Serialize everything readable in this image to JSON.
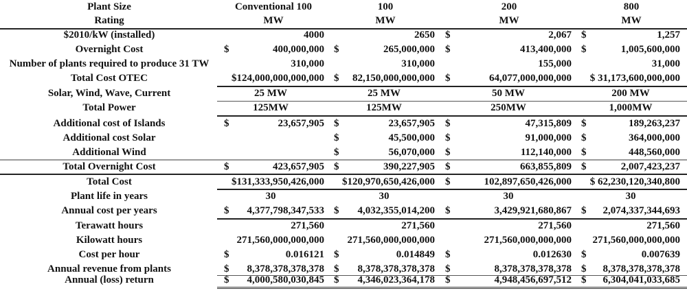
{
  "header": {
    "label_line1": "Plant Size",
    "label_line2": "Rating",
    "columns": [
      {
        "line1": "Conventional 100",
        "line2": "MW"
      },
      {
        "line1": "100",
        "line2": "MW"
      },
      {
        "line1": "200",
        "line2": "MW"
      },
      {
        "line1": "800",
        "line2": "MW"
      }
    ]
  },
  "rows": [
    {
      "label": "$2010/kW (installed)",
      "mode": "right",
      "cells": [
        {
          "cur": "",
          "val": "4000"
        },
        {
          "cur": "",
          "val": "2650"
        },
        {
          "cur": "$",
          "val": "2,067"
        },
        {
          "cur": "$",
          "val": "1,257"
        }
      ]
    },
    {
      "label": "Overnight Cost",
      "mode": "right",
      "cells": [
        {
          "cur": "$",
          "val": "400,000,000"
        },
        {
          "cur": "$",
          "val": "265,000,000"
        },
        {
          "cur": "$",
          "val": "413,400,000"
        },
        {
          "cur": "$",
          "val": "1,005,600,000"
        }
      ]
    },
    {
      "label": "Number of plants required to produce 31 TW",
      "mode": "right",
      "cells": [
        {
          "cur": "",
          "val": "310,000"
        },
        {
          "cur": "",
          "val": "310,000"
        },
        {
          "cur": "",
          "val": "155,000"
        },
        {
          "cur": "",
          "val": "31,000"
        }
      ]
    },
    {
      "label": "Total Cost OTEC",
      "mode": "right",
      "cells": [
        {
          "cur": "",
          "val": "$124,000,000,000,000"
        },
        {
          "cur": "$",
          "val": "82,150,000,000,000"
        },
        {
          "cur": "$",
          "val": "64,077,000,000,000"
        },
        {
          "cur": "",
          "val": "$ 31,173,600,000,000"
        }
      ]
    },
    {
      "label": "Solar, Wind, Wave, Current",
      "mode": "center",
      "cells": [
        {
          "cur": "",
          "val": "25 MW"
        },
        {
          "cur": "",
          "val": "25 MW"
        },
        {
          "cur": "",
          "val": "50 MW"
        },
        {
          "cur": "",
          "val": "200 MW"
        }
      ]
    },
    {
      "label": "Total Power",
      "mode": "center",
      "cells": [
        {
          "cur": "",
          "val": "125MW"
        },
        {
          "cur": "",
          "val": "125MW"
        },
        {
          "cur": "",
          "val": "250MW"
        },
        {
          "cur": "",
          "val": "1,000MW"
        }
      ]
    },
    {
      "label": "Additional cost of Islands",
      "mode": "right",
      "cells": [
        {
          "cur": "$",
          "val": "23,657,905"
        },
        {
          "cur": "$",
          "val": "23,657,905"
        },
        {
          "cur": "$",
          "val": "47,315,809"
        },
        {
          "cur": "$",
          "val": "189,263,237"
        }
      ]
    },
    {
      "label": "Additional cost Solar",
      "mode": "right",
      "cells": [
        {
          "cur": "",
          "val": ""
        },
        {
          "cur": "$",
          "val": "45,500,000"
        },
        {
          "cur": "$",
          "val": "91,000,000"
        },
        {
          "cur": "$",
          "val": "364,000,000"
        }
      ]
    },
    {
      "label": "Additional Wind",
      "mode": "right",
      "cells": [
        {
          "cur": "",
          "val": ""
        },
        {
          "cur": "$",
          "val": "56,070,000"
        },
        {
          "cur": "$",
          "val": "112,140,000"
        },
        {
          "cur": "$",
          "val": "448,560,000"
        }
      ]
    },
    {
      "label": "Total Overnight Cost",
      "mode": "right",
      "cells": [
        {
          "cur": "$",
          "val": "423,657,905"
        },
        {
          "cur": "$",
          "val": "390,227,905"
        },
        {
          "cur": "$",
          "val": "663,855,809"
        },
        {
          "cur": "$",
          "val": "2,007,423,237"
        }
      ]
    },
    {
      "label": "Total Cost",
      "mode": "right",
      "cells": [
        {
          "cur": "",
          "val": "$131,333,950,426,000"
        },
        {
          "cur": "",
          "val": "$120,970,650,426,000"
        },
        {
          "cur": "$",
          "val": "102,897,650,426,000"
        },
        {
          "cur": "",
          "val": "$ 62,230,120,340,800"
        }
      ]
    },
    {
      "label": "Plant life in years",
      "mode": "center",
      "cells": [
        {
          "cur": "",
          "val": "30"
        },
        {
          "cur": "",
          "val": "30"
        },
        {
          "cur": "",
          "val": "30"
        },
        {
          "cur": "",
          "val": "30"
        }
      ]
    },
    {
      "label": "Annual cost per years",
      "mode": "right",
      "cells": [
        {
          "cur": "$",
          "val": "4,377,798,347,533"
        },
        {
          "cur": "$",
          "val": "4,032,355,014,200"
        },
        {
          "cur": "$",
          "val": "3,429,921,680,867"
        },
        {
          "cur": "$",
          "val": "2,074,337,344,693"
        }
      ]
    },
    {
      "label": "Terawatt hours",
      "mode": "right",
      "cells": [
        {
          "cur": "",
          "val": "271,560"
        },
        {
          "cur": "",
          "val": "271,560"
        },
        {
          "cur": "",
          "val": "271,560"
        },
        {
          "cur": "",
          "val": "271,560"
        }
      ]
    },
    {
      "label": "Kilowatt hours",
      "mode": "right",
      "cells": [
        {
          "cur": "",
          "val": "271,560,000,000,000"
        },
        {
          "cur": "",
          "val": "271,560,000,000,000"
        },
        {
          "cur": "",
          "val": "271,560,000,000,000"
        },
        {
          "cur": "",
          "val": "271,560,000,000,000"
        }
      ]
    },
    {
      "label": "Cost per hour",
      "mode": "right",
      "cells": [
        {
          "cur": "$",
          "val": "0.016121"
        },
        {
          "cur": "$",
          "val": "0.014849"
        },
        {
          "cur": "$",
          "val": "0.012630"
        },
        {
          "cur": "$",
          "val": "0.007639"
        }
      ]
    },
    {
      "label": "Annual revenue from plants",
      "mode": "right",
      "cells": [
        {
          "cur": "$",
          "val": "8,378,378,378,378"
        },
        {
          "cur": "$",
          "val": "8,378,378,378,378"
        },
        {
          "cur": "$",
          "val": "8,378,378,378,378"
        },
        {
          "cur": "$",
          "val": "8,378,378,378,378"
        }
      ]
    },
    {
      "label": "Annual (loss) return",
      "mode": "right",
      "cells": [
        {
          "cur": "$",
          "val": "4,000,580,030,845"
        },
        {
          "cur": "$",
          "val": "4,346,023,364,178"
        },
        {
          "cur": "$",
          "val": "4,948,456,697,512"
        },
        {
          "cur": "$",
          "val": "6,304,041,033,685"
        }
      ]
    }
  ]
}
